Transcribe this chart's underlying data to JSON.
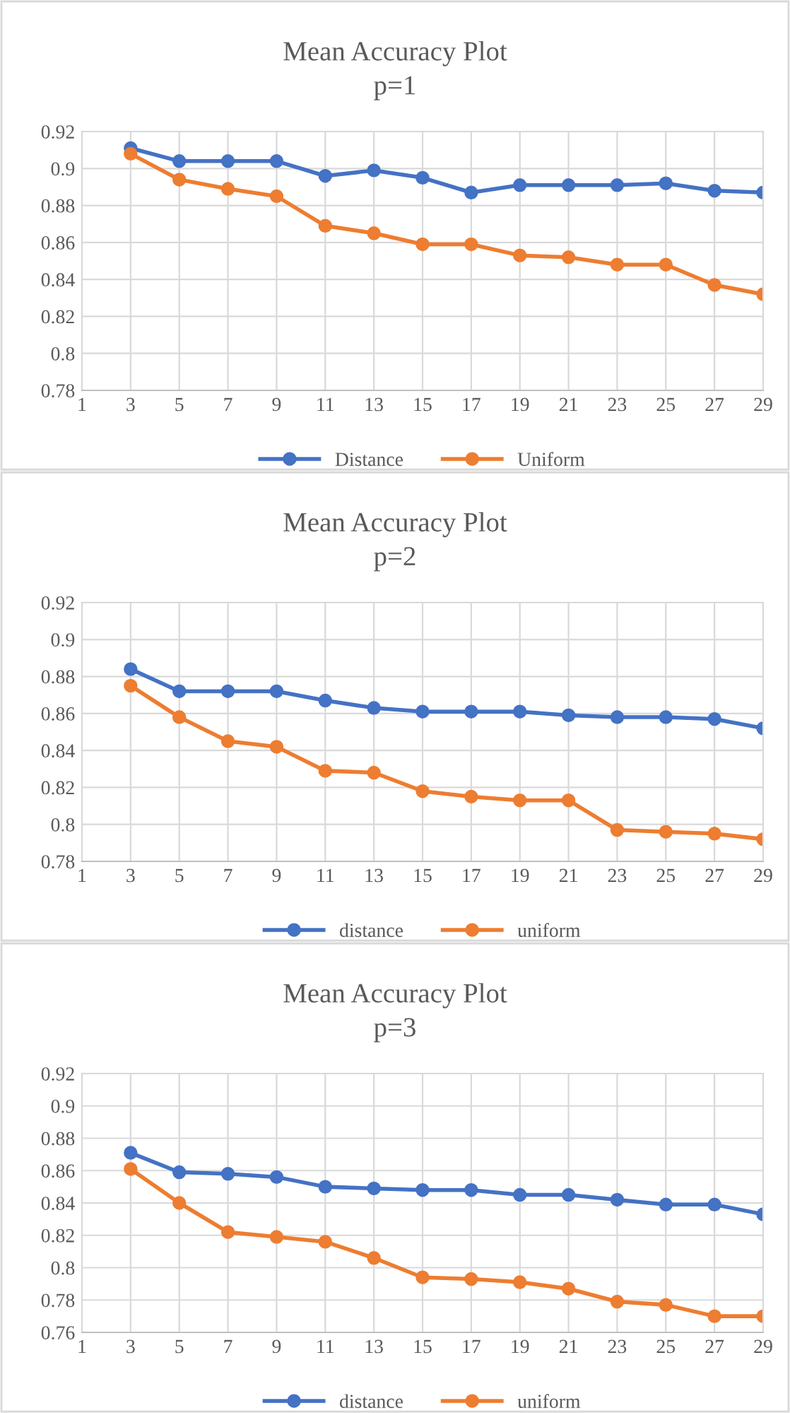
{
  "chart_data": [
    {
      "type": "line",
      "title": "Mean Accuracy Plot",
      "subtitle": "p=1",
      "x": [
        3,
        5,
        7,
        9,
        11,
        13,
        15,
        17,
        19,
        21,
        23,
        25,
        27,
        29
      ],
      "xlim": [
        1,
        29
      ],
      "xticks": [
        1,
        3,
        5,
        7,
        9,
        11,
        13,
        15,
        17,
        19,
        21,
        23,
        25,
        27,
        29
      ],
      "ylim": [
        0.78,
        0.92
      ],
      "yticks": [
        0.78,
        0.8,
        0.82,
        0.84,
        0.86,
        0.88,
        0.9,
        0.92
      ],
      "grid": true,
      "legend": "bottom",
      "marker": "circle",
      "series": [
        {
          "name": "Distance",
          "color": "#4472c4",
          "values": [
            0.911,
            0.904,
            0.904,
            0.904,
            0.896,
            0.899,
            0.895,
            0.887,
            0.891,
            0.891,
            0.891,
            0.892,
            0.888,
            0.887
          ]
        },
        {
          "name": "Uniform",
          "color": "#ed7d31",
          "values": [
            0.908,
            0.894,
            0.889,
            0.885,
            0.869,
            0.865,
            0.859,
            0.859,
            0.853,
            0.852,
            0.848,
            0.848,
            0.837,
            0.832
          ]
        }
      ]
    },
    {
      "type": "line",
      "title": "Mean Accuracy Plot",
      "subtitle": "p=2",
      "x": [
        3,
        5,
        7,
        9,
        11,
        13,
        15,
        17,
        19,
        21,
        23,
        25,
        27,
        29
      ],
      "xlim": [
        1,
        29
      ],
      "xticks": [
        1,
        3,
        5,
        7,
        9,
        11,
        13,
        15,
        17,
        19,
        21,
        23,
        25,
        27,
        29
      ],
      "ylim": [
        0.78,
        0.92
      ],
      "yticks": [
        0.78,
        0.8,
        0.82,
        0.84,
        0.86,
        0.88,
        0.9,
        0.92
      ],
      "grid": true,
      "legend": "bottom",
      "marker": "circle",
      "series": [
        {
          "name": "distance",
          "color": "#4472c4",
          "values": [
            0.884,
            0.872,
            0.872,
            0.872,
            0.867,
            0.863,
            0.861,
            0.861,
            0.861,
            0.859,
            0.858,
            0.858,
            0.857,
            0.852
          ]
        },
        {
          "name": "uniform",
          "color": "#ed7d31",
          "values": [
            0.875,
            0.858,
            0.845,
            0.842,
            0.829,
            0.828,
            0.818,
            0.815,
            0.813,
            0.813,
            0.797,
            0.796,
            0.795,
            0.792
          ]
        }
      ]
    },
    {
      "type": "line",
      "title": "Mean Accuracy Plot",
      "subtitle": "p=3",
      "x": [
        3,
        5,
        7,
        9,
        11,
        13,
        15,
        17,
        19,
        21,
        23,
        25,
        27,
        29
      ],
      "xlim": [
        1,
        29
      ],
      "xticks": [
        1,
        3,
        5,
        7,
        9,
        11,
        13,
        15,
        17,
        19,
        21,
        23,
        25,
        27,
        29
      ],
      "ylim": [
        0.76,
        0.92
      ],
      "yticks": [
        0.76,
        0.78,
        0.8,
        0.82,
        0.84,
        0.86,
        0.88,
        0.9,
        0.92
      ],
      "grid": true,
      "legend": "bottom",
      "marker": "circle",
      "series": [
        {
          "name": "distance",
          "color": "#4472c4",
          "values": [
            0.871,
            0.859,
            0.858,
            0.856,
            0.85,
            0.849,
            0.848,
            0.848,
            0.845,
            0.845,
            0.842,
            0.839,
            0.839,
            0.833
          ]
        },
        {
          "name": "uniform",
          "color": "#ed7d31",
          "values": [
            0.861,
            0.84,
            0.822,
            0.819,
            0.816,
            0.806,
            0.794,
            0.793,
            0.791,
            0.787,
            0.779,
            0.777,
            0.77,
            0.77
          ]
        }
      ]
    }
  ]
}
